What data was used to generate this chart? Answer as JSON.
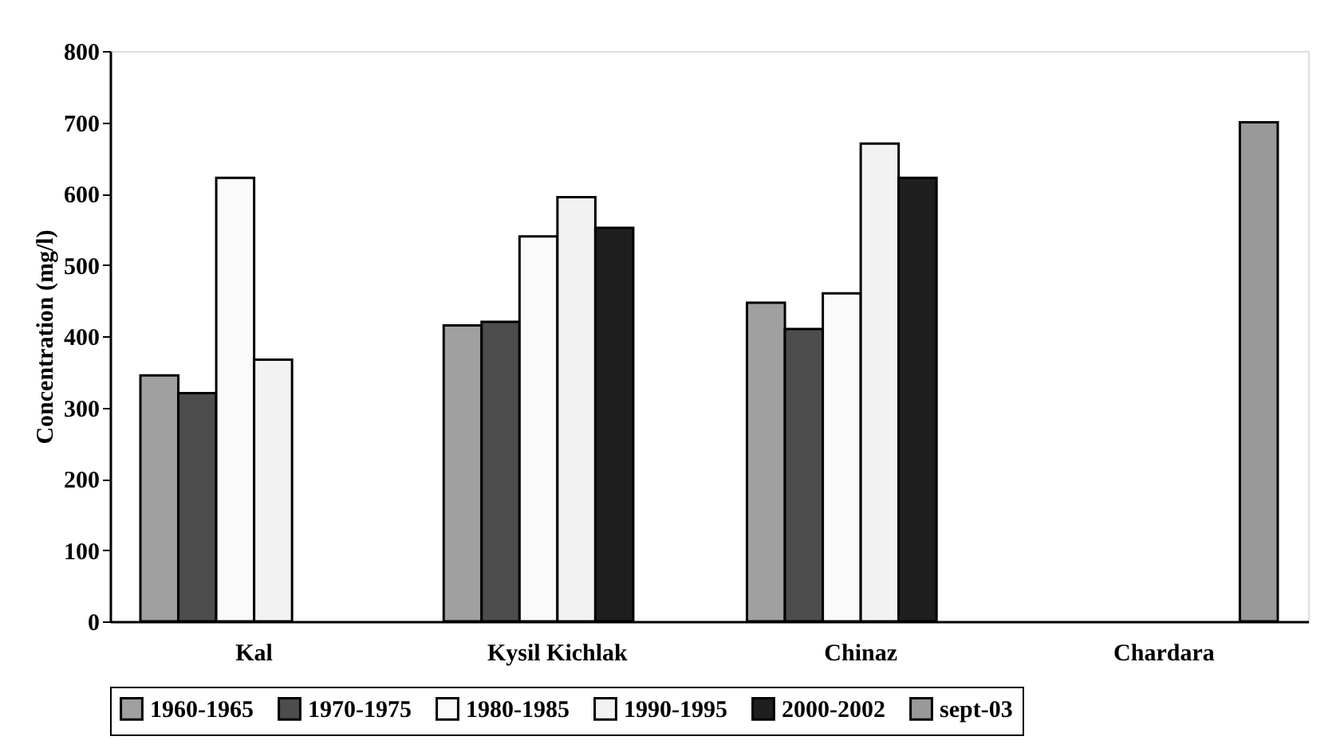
{
  "chart_data": {
    "type": "bar",
    "ylabel": "Concentration (mg/l)",
    "categories": [
      "Kal",
      "Kysil Kichlak",
      "Chinaz",
      "Chardara"
    ],
    "series": [
      {
        "name": "1960-1965",
        "color": "#a0a0a0",
        "values": [
          345,
          415,
          447,
          null
        ]
      },
      {
        "name": "1970-1975",
        "color": "#4d4d4d",
        "values": [
          320,
          420,
          410,
          null
        ]
      },
      {
        "name": "1980-1985",
        "color": "#fafafa",
        "values": [
          622,
          540,
          460,
          null
        ]
      },
      {
        "name": "1990-1995",
        "color": "#f2f2f2",
        "values": [
          367,
          595,
          670,
          null
        ]
      },
      {
        "name": "2000-2002",
        "color": "#1f1f1f",
        "values": [
          null,
          552,
          622,
          null
        ]
      },
      {
        "name": "sept-03",
        "color": "#999999",
        "values": [
          null,
          null,
          null,
          700
        ]
      }
    ],
    "ylim": [
      0,
      800
    ],
    "yticks": [
      0,
      100,
      200,
      300,
      400,
      500,
      600,
      700,
      800
    ],
    "grid": false,
    "legend": "bottom"
  }
}
